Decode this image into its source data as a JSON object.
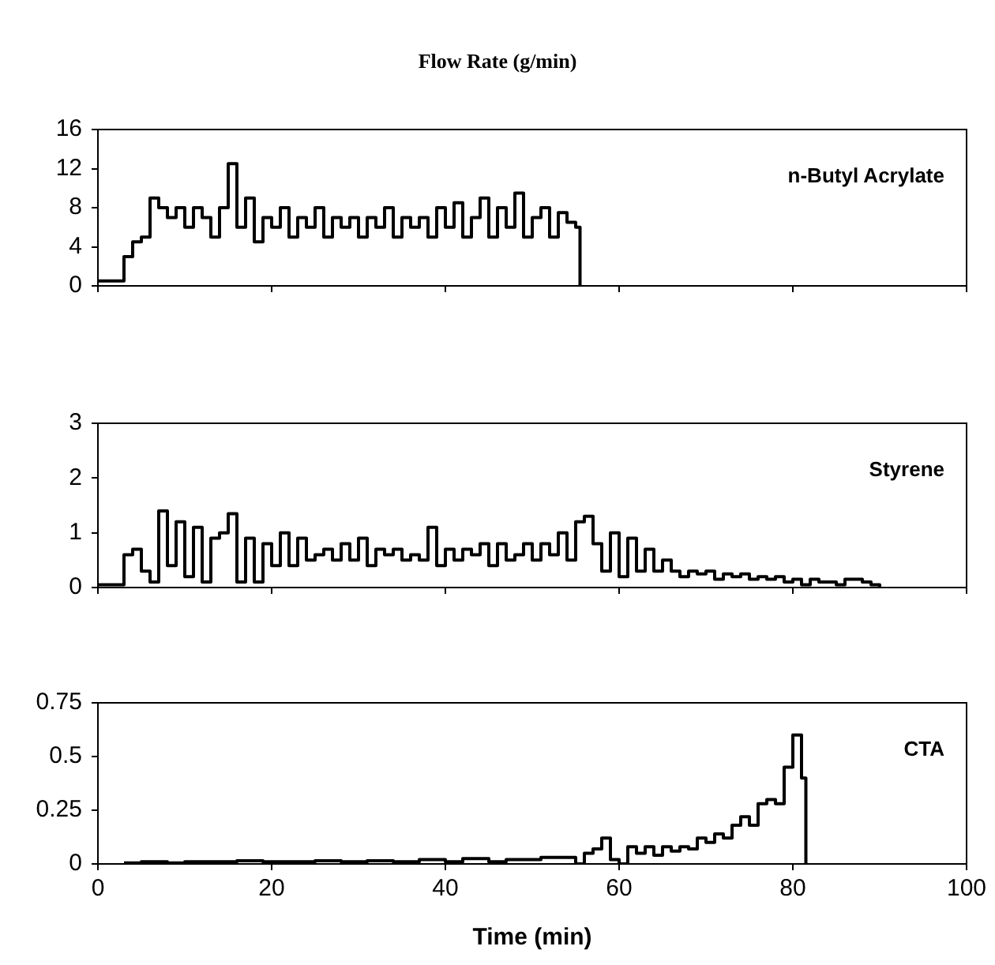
{
  "chart_data": [
    {
      "type": "step",
      "title": "Flow Rate (g/min)",
      "xlim": [
        0,
        100
      ],
      "xticks": [
        0,
        20,
        40,
        60,
        80,
        100
      ],
      "ylim": [
        0,
        16
      ],
      "yticks": [
        0,
        4,
        8,
        12,
        16
      ],
      "tick_labels": "y",
      "marker": "none",
      "series": [
        {
          "name": "n-Butyl Acrylate",
          "color": "#000000",
          "x": [
            0,
            1,
            2,
            3,
            4,
            5,
            6,
            7,
            8,
            9,
            10,
            11,
            12,
            13,
            14,
            15,
            16,
            17,
            18,
            19,
            20,
            21,
            22,
            23,
            24,
            25,
            26,
            27,
            28,
            29,
            30,
            31,
            32,
            33,
            34,
            35,
            36,
            37,
            38,
            39,
            40,
            41,
            42,
            43,
            44,
            45,
            46,
            47,
            48,
            49,
            50,
            51,
            52,
            53,
            54,
            55,
            55.5
          ],
          "values": [
            0.5,
            0.5,
            0.5,
            3,
            4.5,
            5,
            9,
            8,
            7,
            8,
            6,
            8,
            7,
            5,
            8,
            12.5,
            6,
            9,
            4.5,
            7,
            6,
            8,
            5,
            7,
            6,
            8,
            5,
            7,
            6,
            7,
            5,
            7,
            6,
            8,
            5,
            7,
            6,
            7,
            5,
            8,
            6,
            8.5,
            5,
            7,
            9,
            5,
            8,
            6,
            9.5,
            5,
            7,
            8,
            5,
            7.5,
            6.5,
            6,
            0
          ]
        }
      ]
    },
    {
      "type": "step",
      "xlim": [
        0,
        100
      ],
      "xticks": [
        0,
        20,
        40,
        60,
        80,
        100
      ],
      "ylim": [
        0,
        3
      ],
      "yticks": [
        0,
        1,
        2,
        3
      ],
      "tick_labels": "y",
      "marker": "none",
      "series": [
        {
          "name": "Styrene",
          "color": "#000000",
          "x": [
            0,
            3,
            4,
            5,
            6,
            7,
            8,
            9,
            10,
            11,
            12,
            13,
            14,
            15,
            16,
            17,
            18,
            19,
            20,
            21,
            22,
            23,
            24,
            25,
            26,
            27,
            28,
            29,
            30,
            31,
            32,
            33,
            34,
            35,
            36,
            37,
            38,
            39,
            40,
            41,
            42,
            43,
            44,
            45,
            46,
            47,
            48,
            49,
            50,
            51,
            52,
            53,
            54,
            55,
            56,
            57,
            58,
            59,
            60,
            61,
            62,
            63,
            64,
            65,
            66,
            67,
            68,
            69,
            70,
            71,
            72,
            73,
            74,
            75,
            76,
            77,
            78,
            79,
            80,
            81,
            82,
            83,
            84,
            85,
            86,
            87,
            88,
            89,
            90
          ],
          "values": [
            0.05,
            0.6,
            0.7,
            0.3,
            0.1,
            1.4,
            0.4,
            1.2,
            0.2,
            1.1,
            0.1,
            0.9,
            1.0,
            1.35,
            0.1,
            0.9,
            0.1,
            0.8,
            0.4,
            1.0,
            0.4,
            0.9,
            0.5,
            0.6,
            0.7,
            0.5,
            0.8,
            0.5,
            0.9,
            0.4,
            0.7,
            0.6,
            0.7,
            0.5,
            0.6,
            0.5,
            1.1,
            0.4,
            0.7,
            0.5,
            0.7,
            0.6,
            0.8,
            0.4,
            0.8,
            0.5,
            0.6,
            0.8,
            0.5,
            0.8,
            0.6,
            1.0,
            0.5,
            1.2,
            1.3,
            0.8,
            0.3,
            1.0,
            0.2,
            0.9,
            0.3,
            0.7,
            0.3,
            0.5,
            0.3,
            0.2,
            0.3,
            0.25,
            0.3,
            0.15,
            0.25,
            0.2,
            0.25,
            0.15,
            0.2,
            0.15,
            0.2,
            0.1,
            0.15,
            0.05,
            0.15,
            0.1,
            0.1,
            0.05,
            0.15,
            0.15,
            0.1,
            0.05,
            0
          ]
        }
      ]
    },
    {
      "type": "step",
      "xlabel": "Time (min)",
      "xlim": [
        0,
        100
      ],
      "xticks": [
        0,
        20,
        40,
        60,
        80,
        100
      ],
      "ylim": [
        0,
        0.75
      ],
      "yticks": [
        0,
        0.25,
        0.5,
        0.75
      ],
      "marker": "none",
      "series": [
        {
          "name": "CTA",
          "color": "#000000",
          "x": [
            3,
            5,
            8,
            10,
            13,
            16,
            19,
            22,
            25,
            28,
            31,
            34,
            37,
            40,
            42,
            45,
            47,
            50,
            51,
            53,
            54,
            55,
            56,
            57,
            58,
            59,
            60,
            61,
            62,
            63,
            64,
            65,
            66,
            67,
            68,
            69,
            70,
            71,
            72,
            73,
            74,
            75,
            76,
            77,
            78,
            79,
            80,
            81,
            81.5
          ],
          "values": [
            0.005,
            0.01,
            0.005,
            0.01,
            0.01,
            0.015,
            0.01,
            0.01,
            0.015,
            0.01,
            0.015,
            0.01,
            0.02,
            0.01,
            0.025,
            0.01,
            0.02,
            0.02,
            0.03,
            0.03,
            0.03,
            0,
            0.05,
            0.07,
            0.12,
            0.02,
            0,
            0.08,
            0.05,
            0.08,
            0.04,
            0.08,
            0.06,
            0.08,
            0.07,
            0.12,
            0.1,
            0.14,
            0.12,
            0.18,
            0.22,
            0.18,
            0.28,
            0.3,
            0.28,
            0.45,
            0.6,
            0.4,
            0
          ]
        }
      ]
    }
  ]
}
